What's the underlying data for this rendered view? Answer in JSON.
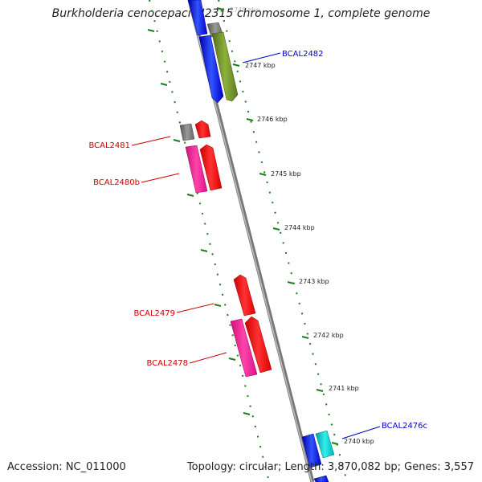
{
  "title": "Burkholderia cenocepacia J2315 chromosome 1, complete genome",
  "accession": "Accession: NC_011000",
  "summary": "Topology: circular; Length: 3,870,082 bp; Genes: 3,557",
  "colors": {
    "backbone": "#888888",
    "ruler": "#1a7f1a",
    "gene_red": "#ff0000",
    "gene_pink": "#ff1493",
    "gene_gray": "#777777",
    "gene_blue": "#0000ff",
    "gene_olive": "#6b8e23",
    "gene_cyan": "#00cccc",
    "label_red": "#cc0000",
    "label_blue": "#0000cc"
  },
  "ruler_labels": [
    "2748 kbp",
    "2747 kbp",
    "2746 kbp",
    "2745 kbp",
    "2744 kbp",
    "2743 kbp",
    "2742 kbp",
    "2741 kbp",
    "2740 kbp"
  ],
  "gene_labels": [
    {
      "text": "BCAL2482",
      "color": "#0000cc"
    },
    {
      "text": "BCAL2481",
      "color": "#cc0000"
    },
    {
      "text": "BCAL2480b",
      "color": "#cc0000"
    },
    {
      "text": "BCAL2479",
      "color": "#cc0000"
    },
    {
      "text": "BCAL2478",
      "color": "#cc0000"
    },
    {
      "text": "BCAL2476c",
      "color": "#0000cc"
    }
  ]
}
